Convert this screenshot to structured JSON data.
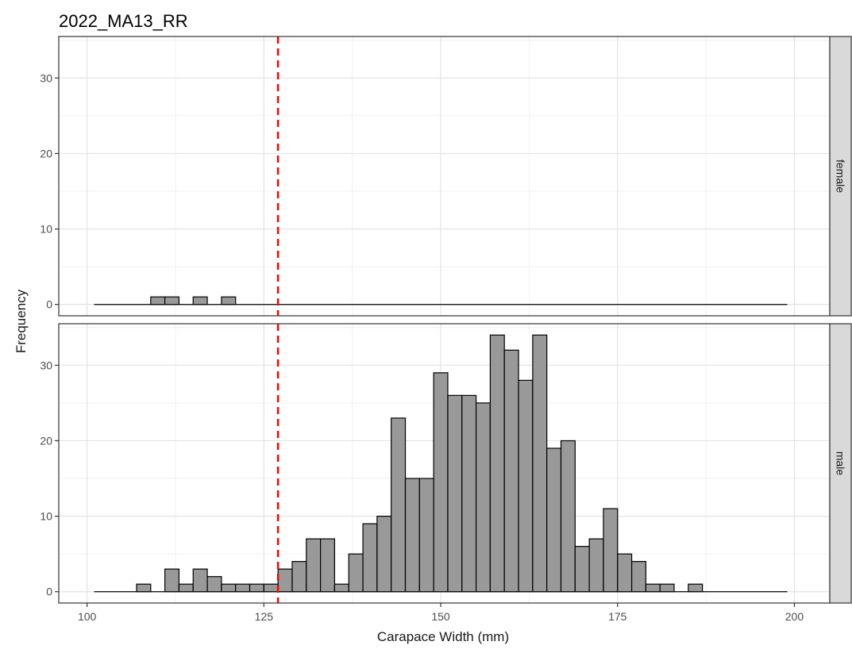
{
  "chart_data": {
    "type": "bar",
    "title": "2022_MA13_RR",
    "xlabel": "Carapace Width (mm)",
    "ylabel": "Frequency",
    "xlim": [
      96,
      205
    ],
    "ylim": [
      -1.5,
      35.5
    ],
    "x_ticks": [
      "100",
      "125",
      "150",
      "175",
      "200"
    ],
    "y_ticks": [
      "0",
      "10",
      "20",
      "30"
    ],
    "grid": true,
    "bin_width": 2,
    "bins_range": [
      101,
      199
    ],
    "reference_line": {
      "x": 127,
      "color": "#ff0000",
      "style": "dashed"
    },
    "bar_fill": "#999999",
    "bar_stroke": "#000000",
    "panels": [
      {
        "label": "female",
        "bars": [
          {
            "x": 110,
            "count": 1
          },
          {
            "x": 112,
            "count": 1
          },
          {
            "x": 116,
            "count": 1
          },
          {
            "x": 120,
            "count": 1
          }
        ]
      },
      {
        "label": "male",
        "bars": [
          {
            "x": 108,
            "count": 1
          },
          {
            "x": 112,
            "count": 3
          },
          {
            "x": 114,
            "count": 1
          },
          {
            "x": 116,
            "count": 3
          },
          {
            "x": 118,
            "count": 2
          },
          {
            "x": 120,
            "count": 1
          },
          {
            "x": 122,
            "count": 1
          },
          {
            "x": 124,
            "count": 1
          },
          {
            "x": 126,
            "count": 1
          },
          {
            "x": 128,
            "count": 3
          },
          {
            "x": 130,
            "count": 4
          },
          {
            "x": 132,
            "count": 7
          },
          {
            "x": 134,
            "count": 7
          },
          {
            "x": 136,
            "count": 1
          },
          {
            "x": 138,
            "count": 5
          },
          {
            "x": 140,
            "count": 9
          },
          {
            "x": 142,
            "count": 10
          },
          {
            "x": 144,
            "count": 23
          },
          {
            "x": 146,
            "count": 15
          },
          {
            "x": 148,
            "count": 15
          },
          {
            "x": 150,
            "count": 29
          },
          {
            "x": 152,
            "count": 26
          },
          {
            "x": 154,
            "count": 26
          },
          {
            "x": 156,
            "count": 25
          },
          {
            "x": 158,
            "count": 34
          },
          {
            "x": 160,
            "count": 32
          },
          {
            "x": 162,
            "count": 28
          },
          {
            "x": 164,
            "count": 34
          },
          {
            "x": 166,
            "count": 19
          },
          {
            "x": 168,
            "count": 20
          },
          {
            "x": 170,
            "count": 6
          },
          {
            "x": 172,
            "count": 7
          },
          {
            "x": 174,
            "count": 11
          },
          {
            "x": 176,
            "count": 5
          },
          {
            "x": 178,
            "count": 4
          },
          {
            "x": 180,
            "count": 1
          },
          {
            "x": 182,
            "count": 1
          },
          {
            "x": 186,
            "count": 1
          }
        ]
      }
    ]
  }
}
